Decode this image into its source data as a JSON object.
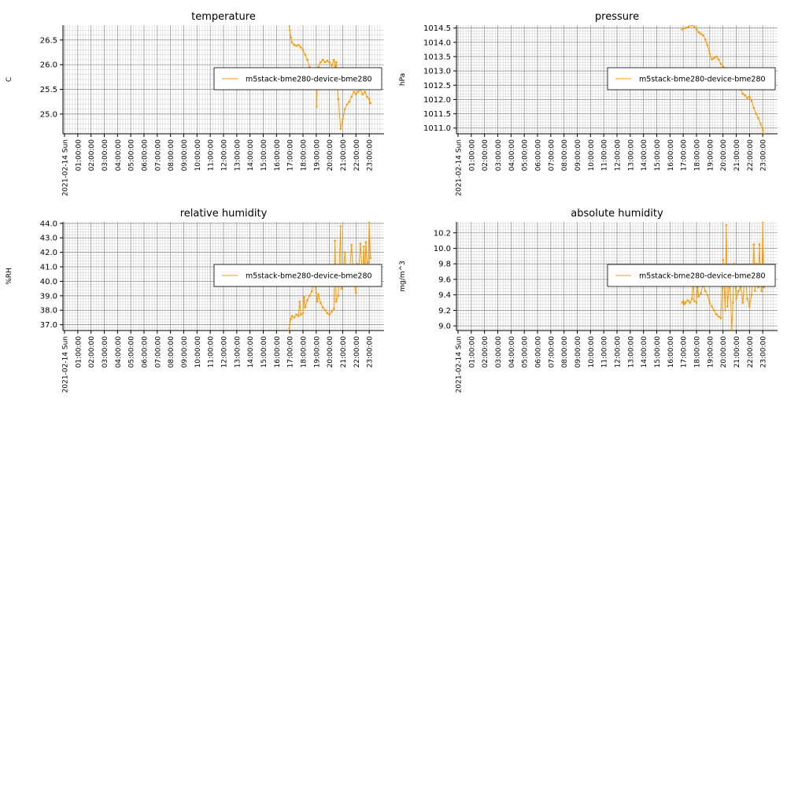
{
  "chart_data": [
    {
      "type": "line",
      "title": "temperature",
      "ylabel": "C",
      "ylim": [
        24.6,
        26.8
      ],
      "yticks": [
        25.0,
        25.5,
        26.0,
        26.5
      ],
      "ytick_labels": [
        "25.0",
        "25.5",
        "26.0",
        "26.5"
      ],
      "x_range": [
        "2021-02-14 00:00:00",
        "2021-02-14 24:00:00"
      ],
      "xtick_labels": [
        "2021-02-14 Sun",
        "01:00:00",
        "02:00:00",
        "03:00:00",
        "04:00:00",
        "05:00:00",
        "06:00:00",
        "07:00:00",
        "08:00:00",
        "09:00:00",
        "10:00:00",
        "11:00:00",
        "12:00:00",
        "13:00:00",
        "14:00:00",
        "15:00:00",
        "16:00:00",
        "17:00:00",
        "18:00:00",
        "19:00:00",
        "20:00:00",
        "21:00:00",
        "22:00:00",
        "23:00:00"
      ],
      "grid": true,
      "legend_position": "right",
      "series": [
        {
          "name": "m5stack-bme280-device-bme280",
          "color": "#ff9900",
          "x": [
            "16:55",
            "17:00",
            "17:05",
            "17:10",
            "17:20",
            "17:30",
            "17:40",
            "17:50",
            "18:00",
            "18:10",
            "18:20",
            "18:30",
            "18:35",
            "18:45",
            "18:55",
            "19:00",
            "19:02",
            "19:05",
            "19:10",
            "19:20",
            "19:30",
            "19:40",
            "19:50",
            "20:00",
            "20:10",
            "20:20",
            "20:25",
            "20:30",
            "20:40",
            "20:50",
            "21:00",
            "21:10",
            "21:20",
            "21:30",
            "21:40",
            "21:50",
            "22:00",
            "22:10",
            "22:20",
            "22:30",
            "22:40",
            "22:50",
            "23:00",
            "23:05"
          ],
          "values": [
            26.85,
            26.7,
            26.55,
            26.45,
            26.4,
            26.38,
            26.4,
            26.35,
            26.3,
            26.2,
            26.1,
            25.95,
            25.8,
            25.75,
            25.73,
            25.7,
            25.15,
            25.7,
            25.95,
            26.05,
            26.1,
            26.05,
            26.08,
            26.05,
            25.98,
            26.1,
            25.9,
            26.05,
            25.3,
            24.7,
            24.9,
            25.1,
            25.2,
            25.25,
            25.35,
            25.45,
            25.4,
            25.45,
            25.5,
            25.4,
            25.45,
            25.35,
            25.3,
            25.22
          ]
        }
      ]
    },
    {
      "type": "line",
      "title": "pressure",
      "ylabel": "hPa",
      "ylim": [
        1010.8,
        1014.6
      ],
      "yticks": [
        1011.0,
        1011.5,
        1012.0,
        1012.5,
        1013.0,
        1013.5,
        1014.0,
        1014.5
      ],
      "ytick_labels": [
        "1011.0",
        "1011.5",
        "1012.0",
        "1012.5",
        "1013.0",
        "1013.5",
        "1014.0",
        "1014.5"
      ],
      "x_range": [
        "2021-02-14 00:00:00",
        "2021-02-14 24:00:00"
      ],
      "xtick_labels": [
        "2021-02-14 Sun",
        "01:00:00",
        "02:00:00",
        "03:00:00",
        "04:00:00",
        "05:00:00",
        "06:00:00",
        "07:00:00",
        "08:00:00",
        "09:00:00",
        "10:00:00",
        "11:00:00",
        "12:00:00",
        "13:00:00",
        "14:00:00",
        "15:00:00",
        "16:00:00",
        "17:00:00",
        "18:00:00",
        "19:00:00",
        "20:00:00",
        "21:00:00",
        "22:00:00",
        "23:00:00"
      ],
      "grid": true,
      "legend_position": "right",
      "series": [
        {
          "name": "m5stack-bme280-device-bme280",
          "color": "#ff9900",
          "x": [
            "16:55",
            "17:10",
            "17:25",
            "17:40",
            "17:50",
            "18:00",
            "18:10",
            "18:20",
            "18:30",
            "18:40",
            "18:50",
            "19:00",
            "19:10",
            "19:20",
            "19:30",
            "19:40",
            "19:50",
            "20:00",
            "20:10",
            "20:20",
            "20:30",
            "20:40",
            "20:50",
            "21:00",
            "21:10",
            "21:20",
            "21:30",
            "21:40",
            "21:50",
            "22:00",
            "22:10",
            "22:20",
            "22:30",
            "22:40",
            "22:50",
            "23:00",
            "23:05"
          ],
          "values": [
            1014.45,
            1014.5,
            1014.55,
            1014.6,
            1014.55,
            1014.45,
            1014.35,
            1014.3,
            1014.25,
            1014.1,
            1013.9,
            1013.6,
            1013.4,
            1013.45,
            1013.5,
            1013.4,
            1013.25,
            1013.15,
            1013.1,
            1013.05,
            1013.0,
            1012.95,
            1012.85,
            1012.7,
            1012.5,
            1012.35,
            1012.2,
            1012.15,
            1012.05,
            1012.1,
            1011.95,
            1011.7,
            1011.5,
            1011.35,
            1011.15,
            1010.95,
            1010.8
          ]
        }
      ]
    },
    {
      "type": "line",
      "title": "relative humidity",
      "ylabel": "%RH",
      "ylim": [
        36.6,
        44.1
      ],
      "yticks": [
        37.0,
        38.0,
        39.0,
        40.0,
        41.0,
        42.0,
        43.0,
        44.0
      ],
      "ytick_labels": [
        "37.0",
        "38.0",
        "39.0",
        "40.0",
        "41.0",
        "42.0",
        "43.0",
        "44.0"
      ],
      "x_range": [
        "2021-02-14 00:00:00",
        "2021-02-14 24:00:00"
      ],
      "xtick_labels": [
        "2021-02-14 Sun",
        "01:00:00",
        "02:00:00",
        "03:00:00",
        "04:00:00",
        "05:00:00",
        "06:00:00",
        "07:00:00",
        "08:00:00",
        "09:00:00",
        "10:00:00",
        "11:00:00",
        "12:00:00",
        "13:00:00",
        "14:00:00",
        "15:00:00",
        "16:00:00",
        "17:00:00",
        "18:00:00",
        "19:00:00",
        "20:00:00",
        "21:00:00",
        "22:00:00",
        "23:00:00"
      ],
      "grid": true,
      "legend_position": "right",
      "series": [
        {
          "name": "m5stack-bme280-device-bme280",
          "color": "#ff9900",
          "x": [
            "16:55",
            "17:00",
            "17:05",
            "17:10",
            "17:20",
            "17:30",
            "17:40",
            "17:45",
            "17:50",
            "18:00",
            "18:05",
            "18:10",
            "18:20",
            "18:30",
            "18:40",
            "18:50",
            "19:00",
            "19:05",
            "19:10",
            "19:20",
            "19:30",
            "19:40",
            "19:50",
            "20:00",
            "20:10",
            "20:20",
            "20:25",
            "20:30",
            "20:40",
            "20:50",
            "20:55",
            "21:00",
            "21:10",
            "21:20",
            "21:30",
            "21:40",
            "21:50",
            "22:00",
            "22:05",
            "22:10",
            "22:20",
            "22:30",
            "22:35",
            "22:40",
            "22:45",
            "22:50",
            "22:55",
            "23:00",
            "23:05"
          ],
          "values": [
            36.6,
            37.0,
            37.4,
            37.6,
            37.5,
            37.7,
            37.6,
            38.6,
            37.7,
            37.8,
            38.9,
            38.2,
            38.7,
            39.0,
            39.3,
            40.2,
            39.2,
            38.6,
            39.1,
            38.5,
            38.2,
            38.0,
            37.8,
            37.7,
            37.9,
            38.1,
            42.8,
            38.6,
            39.0,
            43.8,
            39.5,
            40.0,
            42.0,
            40.2,
            40.5,
            42.5,
            40.0,
            39.2,
            41.2,
            39.8,
            42.6,
            40.3,
            42.4,
            40.6,
            42.7,
            40.8,
            41.3,
            44.1,
            41.6
          ]
        }
      ]
    },
    {
      "type": "line",
      "title": "absolute humidity",
      "ylabel": "mg/m^3",
      "ylim": [
        8.94,
        10.34
      ],
      "yticks": [
        9.0,
        9.2,
        9.4,
        9.6,
        9.8,
        10.0,
        10.2
      ],
      "ytick_labels": [
        "9.0",
        "9.2",
        "9.4",
        "9.6",
        "9.8",
        "10.0",
        "10.2"
      ],
      "x_range": [
        "2021-02-14 00:00:00",
        "2021-02-14 24:00:00"
      ],
      "xtick_labels": [
        "2021-02-14 Sun",
        "01:00:00",
        "02:00:00",
        "03:00:00",
        "04:00:00",
        "05:00:00",
        "06:00:00",
        "07:00:00",
        "08:00:00",
        "09:00:00",
        "10:00:00",
        "11:00:00",
        "12:00:00",
        "13:00:00",
        "14:00:00",
        "15:00:00",
        "16:00:00",
        "17:00:00",
        "18:00:00",
        "19:00:00",
        "20:00:00",
        "21:00:00",
        "22:00:00",
        "23:00:00"
      ],
      "grid": true,
      "legend_position": "right",
      "series": [
        {
          "name": "m5stack-bme280-device-bme280",
          "color": "#ff9900",
          "x": [
            "16:55",
            "17:00",
            "17:05",
            "17:10",
            "17:20",
            "17:30",
            "17:40",
            "17:45",
            "17:50",
            "18:00",
            "18:05",
            "18:10",
            "18:20",
            "18:30",
            "18:40",
            "18:50",
            "19:00",
            "19:10",
            "19:20",
            "19:30",
            "19:40",
            "19:50",
            "20:00",
            "20:10",
            "20:15",
            "20:20",
            "20:30",
            "20:40",
            "20:45",
            "20:50",
            "21:00",
            "21:10",
            "21:20",
            "21:30",
            "21:40",
            "21:50",
            "22:00",
            "22:10",
            "22:20",
            "22:25",
            "22:30",
            "22:40",
            "22:45",
            "22:50",
            "22:55",
            "23:00",
            "23:05"
          ],
          "values": [
            9.3,
            9.32,
            9.28,
            9.3,
            9.33,
            9.3,
            9.35,
            9.6,
            9.32,
            9.3,
            9.5,
            9.38,
            9.42,
            9.55,
            9.45,
            9.4,
            9.3,
            9.25,
            9.2,
            9.15,
            9.12,
            9.1,
            9.85,
            9.2,
            10.3,
            9.25,
            9.6,
            8.95,
            9.3,
            9.8,
            9.35,
            9.45,
            9.5,
            9.3,
            9.7,
            9.35,
            9.25,
            9.4,
            10.05,
            9.45,
            9.8,
            9.5,
            10.05,
            9.6,
            9.45,
            10.34,
            9.5
          ]
        }
      ]
    }
  ]
}
